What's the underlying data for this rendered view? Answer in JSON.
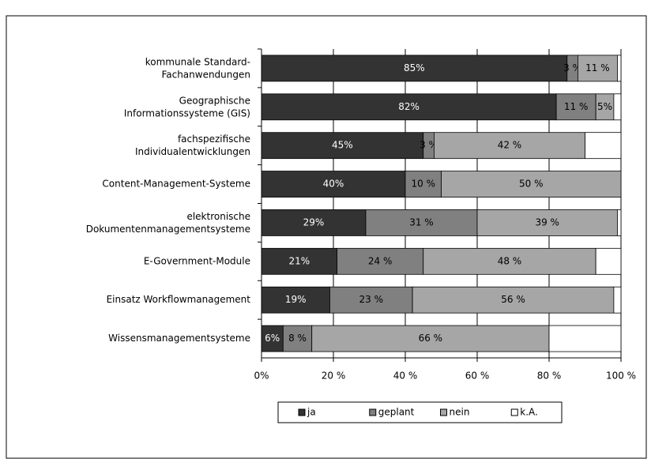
{
  "chart_data": {
    "type": "stacked_bar_horizontal",
    "categories": [
      "kommunale Standard-\nFachanwendungen",
      "Geographische\nInformationssysteme (GIS)",
      "fachspezifische\nIndividualentwicklungen",
      "Content-Management-Systeme",
      "elektronische\nDokumentenmanagementsysteme",
      "E-Government-Module",
      "Einsatz Workflowmanagement",
      "Wissensmanagementsysteme"
    ],
    "series": [
      {
        "name": "ja",
        "color": "#333333",
        "values": [
          85,
          82,
          45,
          40,
          29,
          21,
          19,
          6
        ],
        "value_labels": [
          "85%",
          "82%",
          "45%",
          "40%",
          "29%",
          "21%",
          "19%",
          "6%"
        ]
      },
      {
        "name": "geplant",
        "color": "#808080",
        "values": [
          3,
          11,
          3,
          10,
          31,
          24,
          23,
          8
        ],
        "value_labels": [
          "3 %",
          "11 %",
          "3 %",
          "10 %",
          "31 %",
          "24 %",
          "23 %",
          "8 %"
        ]
      },
      {
        "name": "nein",
        "color": "#a6a6a6",
        "values": [
          11,
          5,
          42,
          50,
          39,
          48,
          56,
          66
        ],
        "value_labels": [
          "11 %",
          "5%",
          "42 %",
          "50 %",
          "39 %",
          "48 %",
          "56 %",
          "66 %"
        ]
      },
      {
        "name": "k.A.",
        "color": "#ffffff",
        "values": [
          1,
          2,
          10,
          0,
          1,
          7,
          2,
          20
        ]
      }
    ],
    "xlim": [
      0,
      100
    ],
    "xticks": [
      {
        "value": 0,
        "label": "0%"
      },
      {
        "value": 20,
        "label": "20 %"
      },
      {
        "value": 40,
        "label": "40 %"
      },
      {
        "value": 60,
        "label": "60 %"
      },
      {
        "value": 80,
        "label": "80 %"
      },
      {
        "value": 100,
        "label": "100 %"
      }
    ],
    "grid": true,
    "legend": "bottom"
  }
}
